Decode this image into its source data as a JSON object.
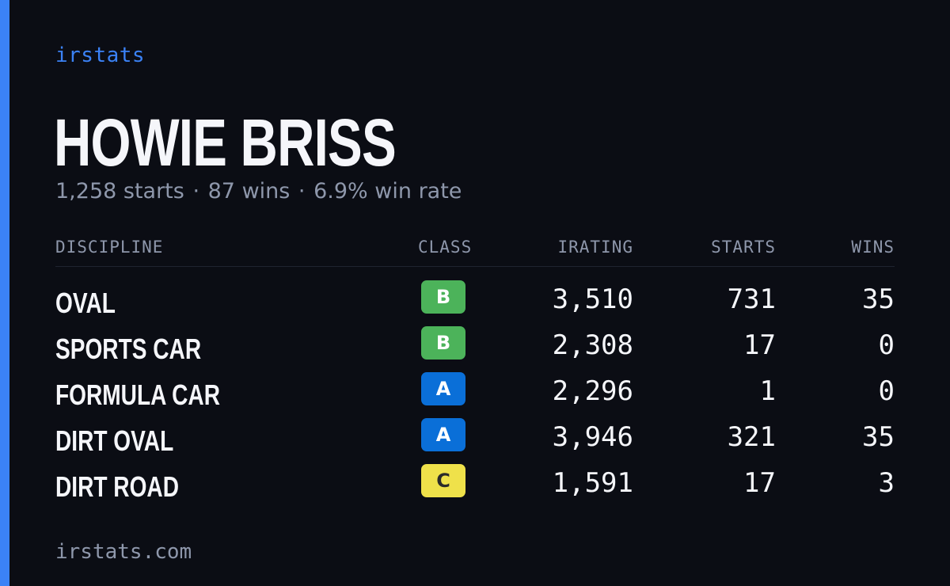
{
  "brand": "irstats",
  "driver": {
    "name": "HOWIE BRISS"
  },
  "summary": {
    "starts": "1,258 starts",
    "wins": "87 wins",
    "win_rate": "6.9% win rate",
    "separator": "·"
  },
  "columns": {
    "discipline": "DISCIPLINE",
    "class": "CLASS",
    "irating": "IRATING",
    "starts": "STARTS",
    "wins": "WINS"
  },
  "rows": [
    {
      "discipline": "OVAL",
      "class": "B",
      "irating": "3,510",
      "starts": "731",
      "wins": "35"
    },
    {
      "discipline": "SPORTS CAR",
      "class": "B",
      "irating": "2,308",
      "starts": "17",
      "wins": "0"
    },
    {
      "discipline": "FORMULA CAR",
      "class": "A",
      "irating": "2,296",
      "starts": "1",
      "wins": "0"
    },
    {
      "discipline": "DIRT OVAL",
      "class": "A",
      "irating": "3,946",
      "starts": "321",
      "wins": "35"
    },
    {
      "discipline": "DIRT ROAD",
      "class": "C",
      "irating": "1,591",
      "starts": "17",
      "wins": "3"
    }
  ],
  "class_colors": {
    "A": {
      "bg": "#0a6fd8",
      "fg": "#ffffff"
    },
    "B": {
      "bg": "#4cb35a",
      "fg": "#ffffff"
    },
    "C": {
      "bg": "#efe14a",
      "fg": "#2a2a2a"
    }
  },
  "colors": {
    "accent": "#3b82f6",
    "background": "#0b0d14",
    "muted_text": "#8e97ab"
  },
  "footer": "irstats.com"
}
